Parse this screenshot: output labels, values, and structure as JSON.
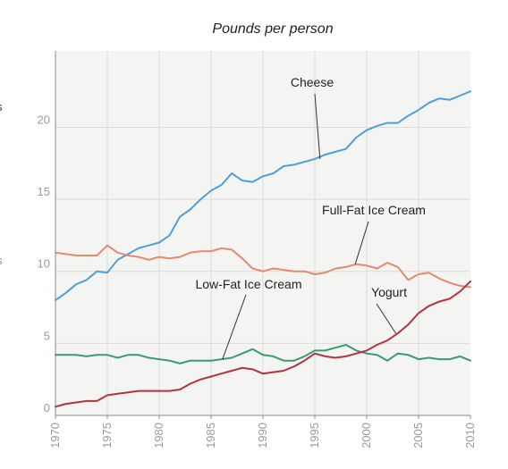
{
  "chart_data": {
    "type": "line",
    "title": "",
    "subtitle": "Pounds per person",
    "xlabel": "",
    "ylabel": "",
    "xlim": [
      1970,
      2010
    ],
    "ylim": [
      0,
      25
    ],
    "x_ticks": [
      "1970",
      "1975",
      "1980",
      "1985",
      "1990",
      "1995",
      "2000",
      "2005",
      "2010"
    ],
    "y_ticks": [
      "0",
      "5",
      "10",
      "15",
      "20"
    ],
    "grid": true,
    "x": [
      1970,
      1971,
      1972,
      1973,
      1974,
      1975,
      1976,
      1977,
      1978,
      1979,
      1980,
      1981,
      1982,
      1983,
      1984,
      1985,
      1986,
      1987,
      1988,
      1989,
      1990,
      1991,
      1992,
      1993,
      1994,
      1995,
      1996,
      1997,
      1998,
      1999,
      2000,
      2001,
      2002,
      2003,
      2004,
      2005,
      2006,
      2007,
      2008,
      2009,
      2010
    ],
    "series": [
      {
        "name": "Cheese",
        "color": "#4f9fd9",
        "values": [
          8.0,
          8.5,
          9.1,
          9.4,
          10.0,
          9.9,
          10.8,
          11.2,
          11.6,
          11.8,
          12.0,
          12.5,
          13.8,
          14.3,
          15.0,
          15.6,
          16.0,
          16.8,
          16.3,
          16.2,
          16.6,
          16.8,
          17.3,
          17.4,
          17.6,
          17.8,
          18.1,
          18.3,
          18.5,
          19.3,
          19.8,
          20.1,
          20.3,
          20.3,
          20.8,
          21.2,
          21.7,
          22.0,
          21.9,
          22.2,
          22.5
        ],
        "label": "Cheese"
      },
      {
        "name": "Full-Fat Ice Cream",
        "color": "#e48a6e",
        "values": [
          11.3,
          11.2,
          11.1,
          11.1,
          11.1,
          11.8,
          11.3,
          11.1,
          11.0,
          10.8,
          11.0,
          10.9,
          11.0,
          11.3,
          11.4,
          11.4,
          11.6,
          11.5,
          10.9,
          10.2,
          10.0,
          10.2,
          10.1,
          10.0,
          10.0,
          9.8,
          9.9,
          10.2,
          10.3,
          10.5,
          10.4,
          10.2,
          10.6,
          10.3,
          9.4,
          9.8,
          9.9,
          9.5,
          9.2,
          9.0,
          8.9
        ],
        "label": "Full-Fat Ice Cream"
      },
      {
        "name": "Low-Fat Ice Cream",
        "color": "#3a9a76",
        "values": [
          4.2,
          4.2,
          4.2,
          4.1,
          4.2,
          4.2,
          4.0,
          4.2,
          4.2,
          4.0,
          3.9,
          3.8,
          3.6,
          3.8,
          3.8,
          3.8,
          3.9,
          4.0,
          4.3,
          4.6,
          4.2,
          4.1,
          3.8,
          3.8,
          4.1,
          4.5,
          4.5,
          4.7,
          4.9,
          4.5,
          4.3,
          4.2,
          3.8,
          4.3,
          4.2,
          3.9,
          4.0,
          3.9,
          3.9,
          4.1,
          3.8
        ],
        "label": "Low-Fat Ice Cream"
      },
      {
        "name": "Yogurt",
        "color": "#b43341",
        "values": [
          0.6,
          0.8,
          0.9,
          1.0,
          1.0,
          1.4,
          1.5,
          1.6,
          1.7,
          1.7,
          1.7,
          1.7,
          1.8,
          2.2,
          2.5,
          2.7,
          2.9,
          3.1,
          3.3,
          3.2,
          2.9,
          3.0,
          3.1,
          3.4,
          3.8,
          4.3,
          4.1,
          4.0,
          4.1,
          4.3,
          4.5,
          4.9,
          5.2,
          5.7,
          6.3,
          7.1,
          7.6,
          7.9,
          8.1,
          8.6,
          9.3
        ],
        "label": "Yogurt"
      }
    ]
  },
  "edge_marks": {
    "top": "s",
    "middle": "s"
  }
}
